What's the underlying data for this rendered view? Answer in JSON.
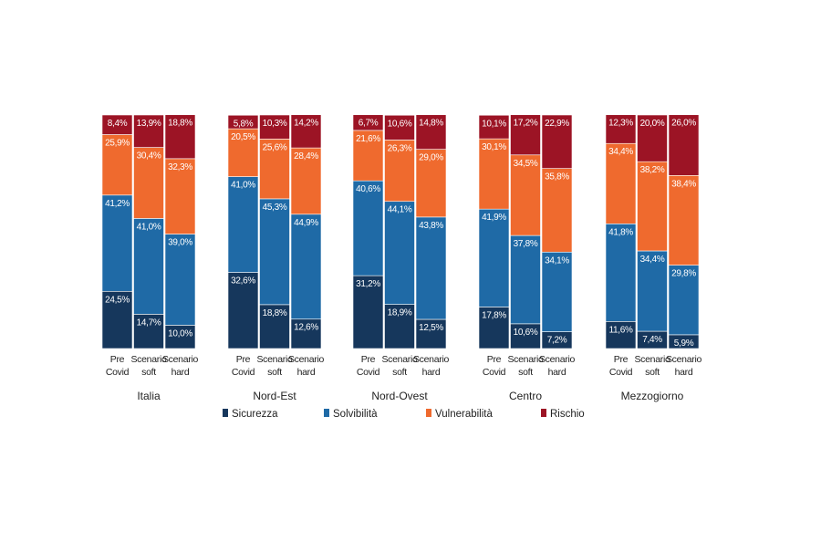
{
  "chart_data": {
    "type": "bar",
    "stacked": true,
    "stack_order": [
      "Sicurezza",
      "Solvibilità",
      "Vulnerabilità",
      "Rischio"
    ],
    "ylim": [
      0,
      100
    ],
    "grid": false,
    "legend_position": "bottom",
    "groups": [
      {
        "label": "Italia",
        "bars": [
          {
            "label_lines": [
              "Pre",
              "Covid"
            ],
            "values": [
              24.5,
              41.2,
              25.9,
              8.4
            ],
            "labels": [
              "24,5%",
              "41,2%",
              "25,9%",
              "8,4%"
            ]
          },
          {
            "label_lines": [
              "Scenario",
              "soft"
            ],
            "values": [
              14.7,
              41.0,
              30.4,
              13.9
            ],
            "labels": [
              "14,7%",
              "41,0%",
              "30,4%",
              "13,9%"
            ]
          },
          {
            "label_lines": [
              "Scenario",
              "hard"
            ],
            "values": [
              10.0,
              39.0,
              32.3,
              18.8
            ],
            "labels": [
              "10,0%",
              "39,0%",
              "32,3%",
              "18,8%"
            ]
          }
        ]
      },
      {
        "label": "Nord-Est",
        "bars": [
          {
            "label_lines": [
              "Pre",
              "Covid"
            ],
            "values": [
              32.6,
              41.0,
              20.5,
              5.8
            ],
            "labels": [
              "32,6%",
              "41,0%",
              "20,5%",
              "5,8%"
            ]
          },
          {
            "label_lines": [
              "Scenario",
              "soft"
            ],
            "values": [
              18.8,
              45.3,
              25.6,
              10.3
            ],
            "labels": [
              "18,8%",
              "45,3%",
              "25,6%",
              "10,3%"
            ]
          },
          {
            "label_lines": [
              "Scenario",
              "hard"
            ],
            "values": [
              12.6,
              44.9,
              28.4,
              14.2
            ],
            "labels": [
              "12,6%",
              "44,9%",
              "28,4%",
              "14,2%"
            ]
          }
        ]
      },
      {
        "label": "Nord-Ovest",
        "bars": [
          {
            "label_lines": [
              "Pre",
              "Covid"
            ],
            "values": [
              31.2,
              40.6,
              21.6,
              6.7
            ],
            "labels": [
              "31,2%",
              "40,6%",
              "21,6%",
              "6,7%"
            ]
          },
          {
            "label_lines": [
              "Scenario",
              "soft"
            ],
            "values": [
              18.9,
              44.1,
              26.3,
              10.6
            ],
            "labels": [
              "18,9%",
              "44,1%",
              "26,3%",
              "10,6%"
            ]
          },
          {
            "label_lines": [
              "Scenario",
              "hard"
            ],
            "values": [
              12.5,
              43.8,
              29.0,
              14.8
            ],
            "labels": [
              "12,5%",
              "43,8%",
              "29,0%",
              "14,8%"
            ]
          }
        ]
      },
      {
        "label": "Centro",
        "bars": [
          {
            "label_lines": [
              "Pre",
              "Covid"
            ],
            "values": [
              17.8,
              41.9,
              30.1,
              10.1
            ],
            "labels": [
              "17,8%",
              "41,9%",
              "30,1%",
              "10,1%"
            ]
          },
          {
            "label_lines": [
              "Scenario",
              "soft"
            ],
            "values": [
              10.6,
              37.8,
              34.5,
              17.2
            ],
            "labels": [
              "10,6%",
              "37,8%",
              "34,5%",
              "17,2%"
            ]
          },
          {
            "label_lines": [
              "Scenario",
              "hard"
            ],
            "values": [
              7.2,
              34.1,
              35.8,
              22.9
            ],
            "labels": [
              "7,2%",
              "34,1%",
              "35,8%",
              "22,9%"
            ]
          }
        ]
      },
      {
        "label": "Mezzogiorno",
        "bars": [
          {
            "label_lines": [
              "Pre",
              "Covid"
            ],
            "values": [
              11.6,
              41.8,
              34.4,
              12.3
            ],
            "labels": [
              "11,6%",
              "41,8%",
              "34,4%",
              "12,3%"
            ]
          },
          {
            "label_lines": [
              "Scenario",
              "soft"
            ],
            "values": [
              7.4,
              34.4,
              38.2,
              20.0
            ],
            "labels": [
              "7,4%",
              "34,4%",
              "38,2%",
              "20,0%"
            ]
          },
          {
            "label_lines": [
              "Scenario",
              "hard"
            ],
            "values": [
              5.9,
              29.8,
              38.4,
              26.0
            ],
            "labels": [
              "5,9%",
              "29,8%",
              "38,4%",
              "26,0%"
            ]
          }
        ]
      }
    ],
    "series": [
      {
        "name": "Sicurezza",
        "color": "#16375c"
      },
      {
        "name": "Solvibilità",
        "color": "#1f6aa6"
      },
      {
        "name": "Vulnerabilità",
        "color": "#ef6a2e"
      },
      {
        "name": "Rischio",
        "color": "#9c1425"
      }
    ]
  }
}
